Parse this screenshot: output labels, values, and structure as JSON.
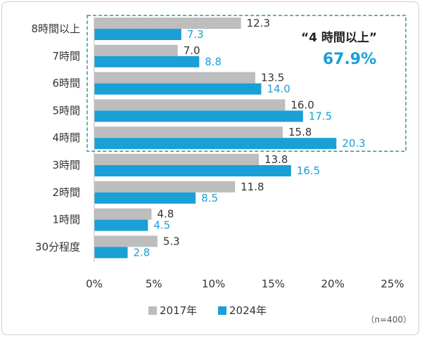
{
  "chart_data": {
    "type": "bar",
    "orientation": "horizontal",
    "categories": [
      "8時間以上",
      "7時間",
      "6時間",
      "5時間",
      "4時間",
      "3時間",
      "2時間",
      "1時間",
      "30分程度"
    ],
    "series": [
      {
        "name": "2017年",
        "values": [
          12.3,
          7.0,
          13.5,
          16.0,
          15.8,
          13.8,
          11.8,
          4.8,
          5.3
        ],
        "labels": [
          "12.3",
          "7.0",
          "13.5",
          "16.0",
          "15.8",
          "13.8",
          "11.8",
          "4.8",
          "5.3"
        ]
      },
      {
        "name": "2024年",
        "values": [
          7.3,
          8.8,
          14.0,
          17.5,
          20.3,
          16.5,
          8.5,
          4.5,
          2.8
        ],
        "labels": [
          "7.3",
          "8.8",
          "14.0",
          "17.5",
          "20.3",
          "16.5",
          "8.5",
          "4.5",
          "2.8"
        ]
      }
    ],
    "xlim": [
      0,
      25
    ],
    "xticks": [
      "0%",
      "5%",
      "10%",
      "15%",
      "20%",
      "25%"
    ],
    "colors": {
      "2017年": "#bdbdbd",
      "2024年": "#1a9fd6"
    },
    "grid": false,
    "legend": "bottom",
    "highlight_categories": [
      "8時間以上",
      "7時間",
      "6時間",
      "5時間",
      "4時間"
    ],
    "callout": {
      "title": "“4 時間以上”",
      "value": "67.9%"
    },
    "note": "（n=400）"
  }
}
